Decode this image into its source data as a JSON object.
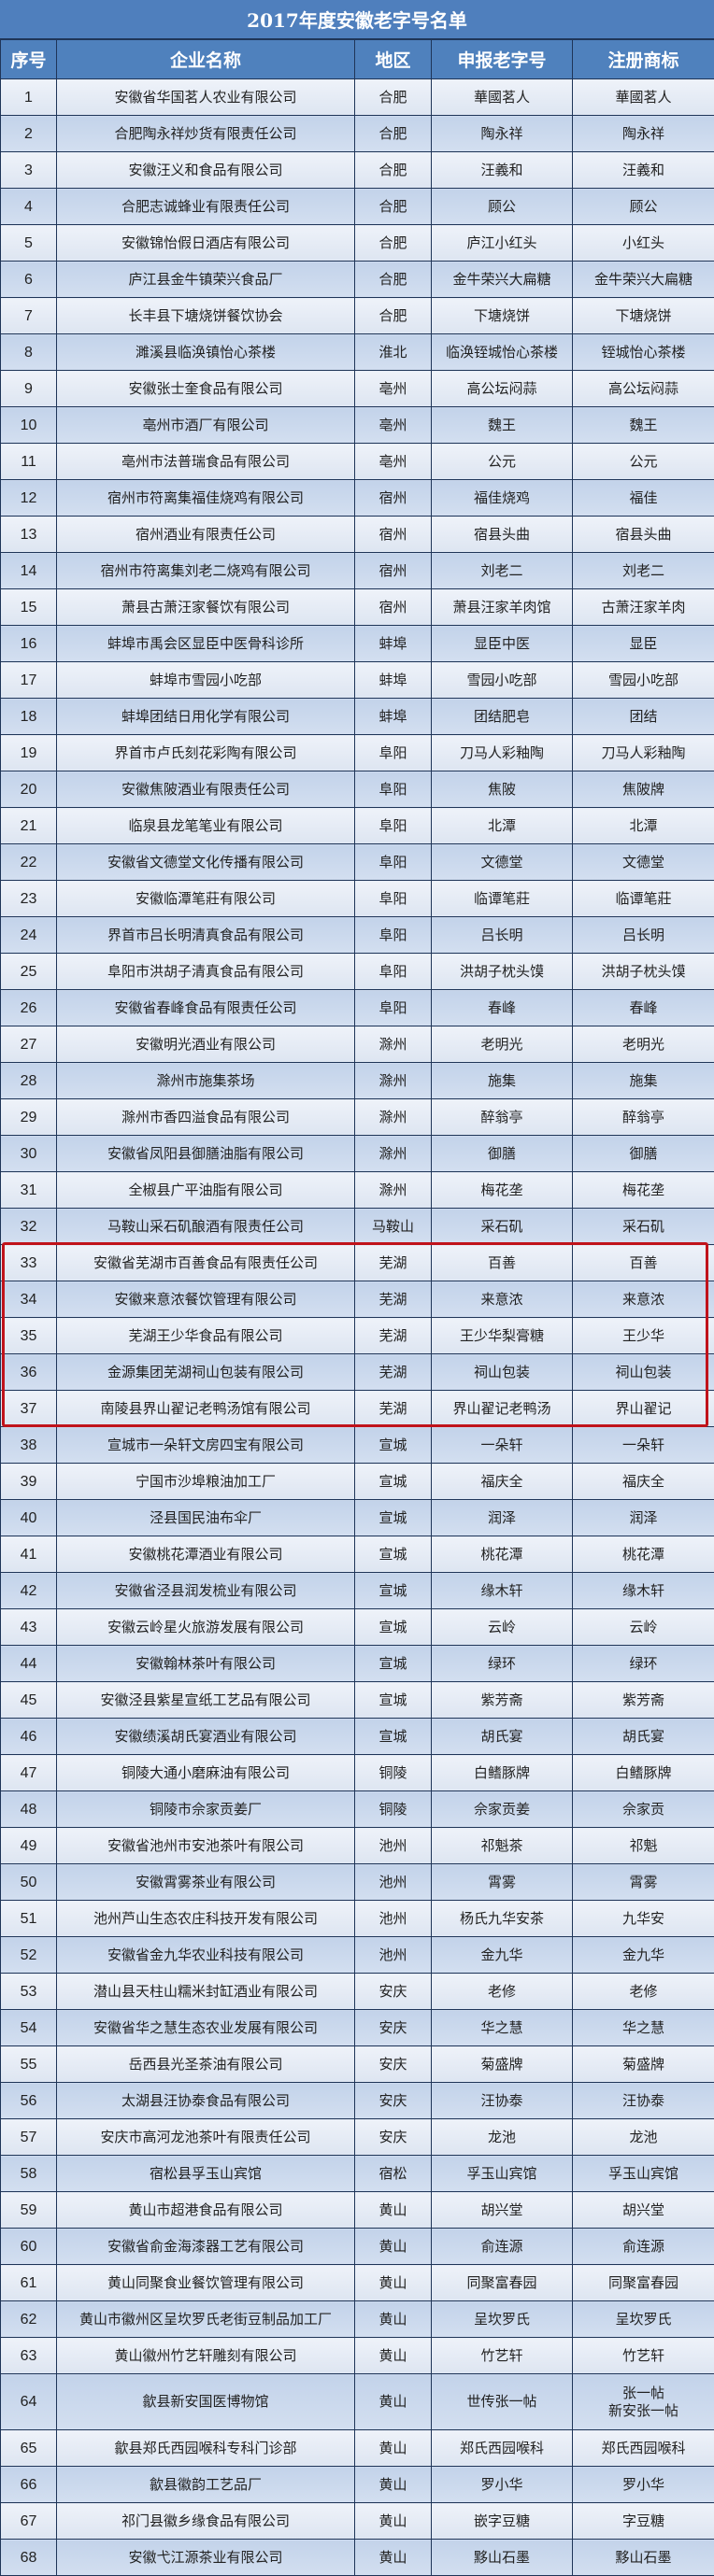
{
  "title": "2017年度安徽老字号名单",
  "headers": [
    "序号",
    "企业名称",
    "地区",
    "申报老字号",
    "注册商标"
  ],
  "highlight_color": "#c0131b",
  "highlighted_rows": [
    33,
    37
  ],
  "rows": [
    [
      "1",
      "安徽省华国茗人农业有限公司",
      "合肥",
      "華國茗人",
      "華國茗人"
    ],
    [
      "2",
      "合肥陶永祥炒货有限责任公司",
      "合肥",
      "陶永祥",
      "陶永祥"
    ],
    [
      "3",
      "安徽汪义和食品有限公司",
      "合肥",
      "汪義和",
      "汪義和"
    ],
    [
      "4",
      "合肥志诚蜂业有限责任公司",
      "合肥",
      "顾公",
      "顾公"
    ],
    [
      "5",
      "安徽锦怡假日酒店有限公司",
      "合肥",
      "庐江小红头",
      "小红头"
    ],
    [
      "6",
      "庐江县金牛镇荣兴食品厂",
      "合肥",
      "金牛荣兴大扁糖",
      "金牛荣兴大扁糖"
    ],
    [
      "7",
      "长丰县下塘烧饼餐饮协会",
      "合肥",
      "下塘烧饼",
      "下塘烧饼"
    ],
    [
      "8",
      "濉溪县临涣镇怡心茶楼",
      "淮北",
      "临涣铚城怡心茶楼",
      "铚城怡心茶楼"
    ],
    [
      "9",
      "安徽张士奎食品有限公司",
      "亳州",
      "高公坛闷蒜",
      "高公坛闷蒜"
    ],
    [
      "10",
      "亳州市酒厂有限公司",
      "亳州",
      "魏王",
      "魏王"
    ],
    [
      "11",
      "亳州市法普瑞食品有限公司",
      "亳州",
      "公元",
      "公元"
    ],
    [
      "12",
      "宿州市符离集福佳烧鸡有限公司",
      "宿州",
      "福佳烧鸡",
      "福佳"
    ],
    [
      "13",
      "宿州酒业有限责任公司",
      "宿州",
      "宿县头曲",
      "宿县头曲"
    ],
    [
      "14",
      "宿州市符离集刘老二烧鸡有限公司",
      "宿州",
      "刘老二",
      "刘老二"
    ],
    [
      "15",
      "萧县古萧汪家餐饮有限公司",
      "宿州",
      "萧县汪家羊肉馆",
      "古萧汪家羊肉"
    ],
    [
      "16",
      "蚌埠市禹会区显臣中医骨科诊所",
      "蚌埠",
      "显臣中医",
      "显臣"
    ],
    [
      "17",
      "蚌埠市雪园小吃部",
      "蚌埠",
      "雪园小吃部",
      "雪园小吃部"
    ],
    [
      "18",
      "蚌埠团结日用化学有限公司",
      "蚌埠",
      "团结肥皂",
      "团结"
    ],
    [
      "19",
      "界首市卢氏刻花彩陶有限公司",
      "阜阳",
      "刀马人彩釉陶",
      "刀马人彩釉陶"
    ],
    [
      "20",
      "安徽焦陂酒业有限责任公司",
      "阜阳",
      "焦陂",
      "焦陂牌"
    ],
    [
      "21",
      "临泉县龙笔笔业有限公司",
      "阜阳",
      "北潭",
      "北潭"
    ],
    [
      "22",
      "安徽省文德堂文化传播有限公司",
      "阜阳",
      "文德堂",
      "文德堂"
    ],
    [
      "23",
      "安徽临潭笔莊有限公司",
      "阜阳",
      "临谭笔莊",
      "临谭笔莊"
    ],
    [
      "24",
      "界首市吕长明清真食品有限公司",
      "阜阳",
      "吕长明",
      "吕长明"
    ],
    [
      "25",
      "阜阳市洪胡子清真食品有限公司",
      "阜阳",
      "洪胡子枕头馍",
      "洪胡子枕头馍"
    ],
    [
      "26",
      "安徽省春峰食品有限责任公司",
      "阜阳",
      "春峰",
      "春峰"
    ],
    [
      "27",
      "安徽明光酒业有限公司",
      "滁州",
      "老明光",
      "老明光"
    ],
    [
      "28",
      "滁州市施集茶场",
      "滁州",
      "施集",
      "施集"
    ],
    [
      "29",
      "滁州市香四溢食品有限公司",
      "滁州",
      "醉翁亭",
      "醉翁亭"
    ],
    [
      "30",
      "安徽省凤阳县御膳油脂有限公司",
      "滁州",
      "御膳",
      "御膳"
    ],
    [
      "31",
      "全椒县广平油脂有限公司",
      "滁州",
      "梅花垄",
      "梅花垄"
    ],
    [
      "32",
      "马鞍山采石矶酿酒有限责任公司",
      "马鞍山",
      "采石矶",
      "采石矶"
    ],
    [
      "33",
      "安徽省芜湖市百善食品有限责任公司",
      "芜湖",
      "百善",
      "百善"
    ],
    [
      "34",
      "安徽来意浓餐饮管理有限公司",
      "芜湖",
      "来意浓",
      "来意浓"
    ],
    [
      "35",
      "芜湖王少华食品有限公司",
      "芜湖",
      "王少华梨膏糖",
      "王少华"
    ],
    [
      "36",
      "金源集团芜湖祠山包装有限公司",
      "芜湖",
      "祠山包装",
      "祠山包装"
    ],
    [
      "37",
      "南陵县界山翟记老鸭汤馆有限公司",
      "芜湖",
      "界山翟记老鸭汤",
      "界山翟记"
    ],
    [
      "38",
      "宣城市一朵轩文房四宝有限公司",
      "宣城",
      "一朵轩",
      "一朵轩"
    ],
    [
      "39",
      "宁国市沙埠粮油加工厂",
      "宣城",
      "福庆全",
      "福庆全"
    ],
    [
      "40",
      "泾县国民油布伞厂",
      "宣城",
      "润泽",
      "润泽"
    ],
    [
      "41",
      "安徽桃花潭酒业有限公司",
      "宣城",
      "桃花潭",
      "桃花潭"
    ],
    [
      "42",
      "安徽省泾县润发梳业有限公司",
      "宣城",
      "缘木轩",
      "缘木轩"
    ],
    [
      "43",
      "安徽云岭星火旅游发展有限公司",
      "宣城",
      "云岭",
      "云岭"
    ],
    [
      "44",
      "安徽翰林茶叶有限公司",
      "宣城",
      "绿环",
      "绿环"
    ],
    [
      "45",
      "安徽泾县紫星宣纸工艺品有限公司",
      "宣城",
      "紫芳斋",
      "紫芳斋"
    ],
    [
      "46",
      "安徽绩溪胡氏宴酒业有限公司",
      "宣城",
      "胡氏宴",
      "胡氏宴"
    ],
    [
      "47",
      "铜陵大通小磨麻油有限公司",
      "铜陵",
      "白鳍豚牌",
      "白鳍豚牌"
    ],
    [
      "48",
      "铜陵市佘家贡姜厂",
      "铜陵",
      "佘家贡姜",
      "佘家贡"
    ],
    [
      "49",
      "安徽省池州市安池茶叶有限公司",
      "池州",
      "祁魁茶",
      "祁魁"
    ],
    [
      "50",
      "安徽霄雾茶业有限公司",
      "池州",
      "霄雾",
      "霄雾"
    ],
    [
      "51",
      "池州芦山生态农庄科技开发有限公司",
      "池州",
      "杨氏九华安茶",
      "九华安"
    ],
    [
      "52",
      "安徽省金九华农业科技有限公司",
      "池州",
      "金九华",
      "金九华"
    ],
    [
      "53",
      "潜山县天柱山糯米封缸酒业有限公司",
      "安庆",
      "老修",
      "老修"
    ],
    [
      "54",
      "安徽省华之慧生态农业发展有限公司",
      "安庆",
      "华之慧",
      "华之慧"
    ],
    [
      "55",
      "岳西县光圣茶油有限公司",
      "安庆",
      "菊盛牌",
      "菊盛牌"
    ],
    [
      "56",
      "太湖县汪协泰食品有限公司",
      "安庆",
      "汪协泰",
      "汪协泰"
    ],
    [
      "57",
      "安庆市高河龙池茶叶有限责任公司",
      "安庆",
      "龙池",
      "龙池"
    ],
    [
      "58",
      "宿松县孚玉山宾馆",
      "宿松",
      "孚玉山宾馆",
      "孚玉山宾馆"
    ],
    [
      "59",
      "黄山市超港食品有限公司",
      "黄山",
      "胡兴堂",
      "胡兴堂"
    ],
    [
      "60",
      "安徽省俞金海漆器工艺有限公司",
      "黄山",
      "俞连源",
      "俞连源"
    ],
    [
      "61",
      "黄山同聚食业餐饮管理有限公司",
      "黄山",
      "同聚富春园",
      "同聚富春园"
    ],
    [
      "62",
      "黄山市徽州区呈坎罗氏老街豆制品加工厂",
      "黄山",
      "呈坎罗氏",
      "呈坎罗氏"
    ],
    [
      "63",
      "黄山徽州竹艺轩雕刻有限公司",
      "黄山",
      "竹艺轩",
      "竹艺轩"
    ],
    [
      "64",
      "歙县新安国医博物馆",
      "黄山",
      "世传张一帖",
      "张一帖\n新安张一帖"
    ],
    [
      "65",
      "歙县郑氏西园喉科专科门诊部",
      "黄山",
      "郑氏西园喉科",
      "郑氏西园喉科"
    ],
    [
      "66",
      "歙县徽韵工艺品厂",
      "黄山",
      "罗小华",
      "罗小华"
    ],
    [
      "67",
      "祁门县徽乡缘食品有限公司",
      "黄山",
      "嵌字豆糖",
      "字豆糖"
    ],
    [
      "68",
      "安徽弋江源茶业有限公司",
      "黄山",
      "黟山石墨",
      "黟山石墨"
    ]
  ]
}
